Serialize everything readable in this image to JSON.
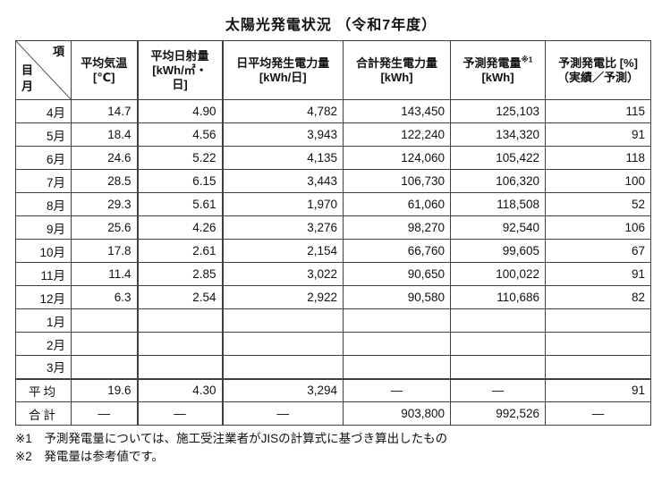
{
  "title": "太陽光発電状況 （令和7年度）",
  "table": {
    "corner": {
      "top_right": "項",
      "left_middle": "目",
      "left_bottom": "月"
    },
    "columns": [
      {
        "lines": [
          "平均気温",
          "[℃]"
        ]
      },
      {
        "lines": [
          "平均日射量",
          "[kWh/㎡・",
          "日]"
        ]
      },
      {
        "lines": [
          "日平均発生電力量",
          "[kWh/日]"
        ]
      },
      {
        "lines": [
          "合計発生電力量",
          "[kWh]"
        ]
      },
      {
        "lines": [
          "予測発電量",
          "[kWh]"
        ],
        "sup": "※1"
      },
      {
        "lines": [
          "予測発電比 [%]",
          "（実績／予測）"
        ]
      }
    ],
    "rows": [
      {
        "month": "4月",
        "values": [
          "14.7",
          "4.90",
          "4,782",
          "143,450",
          "125,103",
          "115"
        ]
      },
      {
        "month": "5月",
        "values": [
          "18.4",
          "4.56",
          "3,943",
          "122,240",
          "134,320",
          "91"
        ]
      },
      {
        "month": "6月",
        "values": [
          "24.6",
          "5.22",
          "4,135",
          "124,060",
          "105,422",
          "118"
        ]
      },
      {
        "month": "7月",
        "values": [
          "28.5",
          "6.15",
          "3,443",
          "106,730",
          "106,320",
          "100"
        ]
      },
      {
        "month": "8月",
        "values": [
          "29.3",
          "5.61",
          "1,970",
          "61,060",
          "118,508",
          "52"
        ]
      },
      {
        "month": "9月",
        "values": [
          "25.6",
          "4.26",
          "3,276",
          "98,270",
          "92,540",
          "106"
        ]
      },
      {
        "month": "10月",
        "values": [
          "17.8",
          "2.61",
          "2,154",
          "66,760",
          "99,605",
          "67"
        ]
      },
      {
        "month": "11月",
        "values": [
          "11.4",
          "2.85",
          "3,022",
          "90,650",
          "100,022",
          "91"
        ]
      },
      {
        "month": "12月",
        "values": [
          "6.3",
          "2.54",
          "2,922",
          "90,580",
          "110,686",
          "82"
        ]
      },
      {
        "month": "1月",
        "values": [
          "",
          "",
          "",
          "",
          "",
          ""
        ]
      },
      {
        "month": "2月",
        "values": [
          "",
          "",
          "",
          "",
          "",
          ""
        ]
      },
      {
        "month": "3月",
        "values": [
          "",
          "",
          "",
          "",
          "",
          ""
        ]
      },
      {
        "month": "平均",
        "values": [
          "19.6",
          "4.30",
          "3,294",
          "―",
          "―",
          "91"
        ],
        "summary": true,
        "thick_top": true
      },
      {
        "month": "合計",
        "values": [
          "―",
          "―",
          "―",
          "903,800",
          "992,526",
          "―"
        ],
        "summary": true
      }
    ]
  },
  "footnotes": [
    "※1　予測発電量については、施工受注業者がJISの計算式に基づき算出したもの",
    "※2　発電量は参考値です。"
  ]
}
